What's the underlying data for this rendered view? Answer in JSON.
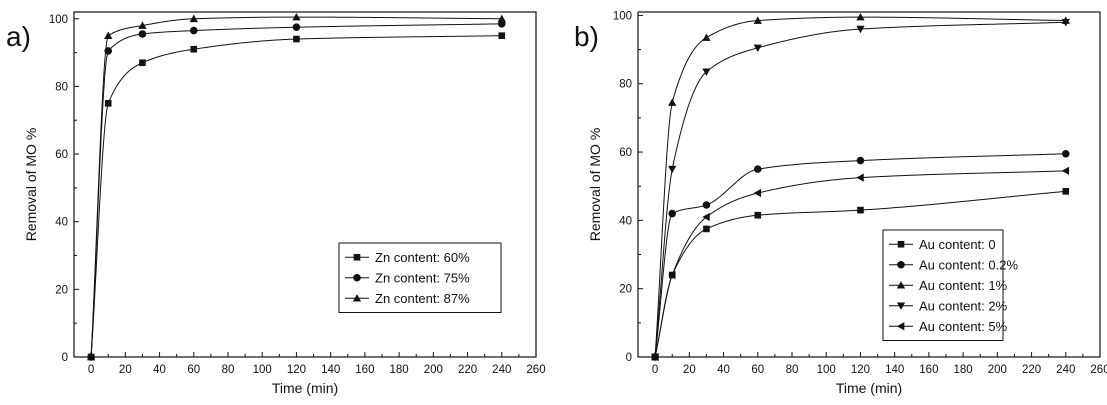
{
  "figure": {
    "panel_a": "a)",
    "panel_b": "b)"
  },
  "colors": {
    "ink": "#111111",
    "frame": "#111111",
    "background": "#ffffff"
  },
  "chart_data": [
    {
      "type": "scatter",
      "panel": "a)",
      "xlabel": "Time (min)",
      "ylabel": "Removal of MO %",
      "xlim": [
        -10,
        260
      ],
      "ylim": [
        0,
        102
      ],
      "xticks": [
        0,
        20,
        40,
        60,
        80,
        100,
        120,
        140,
        160,
        180,
        200,
        220,
        240,
        260
      ],
      "yticks": [
        0,
        20,
        40,
        60,
        80,
        100
      ],
      "grid": false,
      "legend": "bottom-right",
      "fitted_curves": true,
      "series": [
        {
          "name": "Zn content: 60%",
          "marker": "square",
          "x": [
            0,
            10,
            30,
            60,
            120,
            240
          ],
          "y": [
            0,
            75,
            87,
            91,
            94,
            95
          ]
        },
        {
          "name": "Zn content: 75%",
          "marker": "circle",
          "x": [
            0,
            10,
            30,
            60,
            120,
            240
          ],
          "y": [
            0,
            90.5,
            95.5,
            96.5,
            97.5,
            98.5
          ]
        },
        {
          "name": "Zn content: 87%",
          "marker": "triangle-up",
          "x": [
            0,
            10,
            30,
            60,
            120,
            240
          ],
          "y": [
            0,
            95,
            98,
            100,
            100.5,
            100
          ]
        }
      ]
    },
    {
      "type": "scatter",
      "panel": "b)",
      "xlabel": "Time (min)",
      "ylabel": "Removal of MO %",
      "xlim": [
        -10,
        260
      ],
      "ylim": [
        0,
        101
      ],
      "xticks": [
        0,
        20,
        40,
        60,
        80,
        100,
        120,
        140,
        160,
        180,
        200,
        220,
        240,
        260
      ],
      "yticks": [
        0,
        20,
        40,
        60,
        80,
        100
      ],
      "grid": false,
      "legend": "bottom-right",
      "fitted_curves": true,
      "series": [
        {
          "name": "Au content: 0",
          "marker": "square",
          "x": [
            0,
            10,
            30,
            60,
            120,
            240
          ],
          "y": [
            0,
            24,
            37.5,
            41.5,
            43,
            48.5
          ]
        },
        {
          "name": "Au content: 0.2%",
          "marker": "circle",
          "x": [
            0,
            10,
            30,
            60,
            120,
            240
          ],
          "y": [
            0,
            42,
            44.5,
            55,
            57.5,
            59.5
          ]
        },
        {
          "name": "Au content:  1%",
          "marker": "triangle-up",
          "x": [
            0,
            10,
            30,
            60,
            120,
            240
          ],
          "y": [
            0,
            74.5,
            93.5,
            98.5,
            99.5,
            98.5
          ]
        },
        {
          "name": "Au content:  2%",
          "marker": "triangle-down",
          "x": [
            0,
            10,
            30,
            60,
            120,
            240
          ],
          "y": [
            0,
            55,
            83.5,
            90.5,
            96,
            98
          ]
        },
        {
          "name": "Au content:  5%",
          "marker": "triangle-left",
          "x": [
            0,
            10,
            30,
            60,
            120,
            240
          ],
          "y": [
            0,
            24,
            41,
            48,
            52.5,
            54.5
          ]
        }
      ]
    }
  ]
}
